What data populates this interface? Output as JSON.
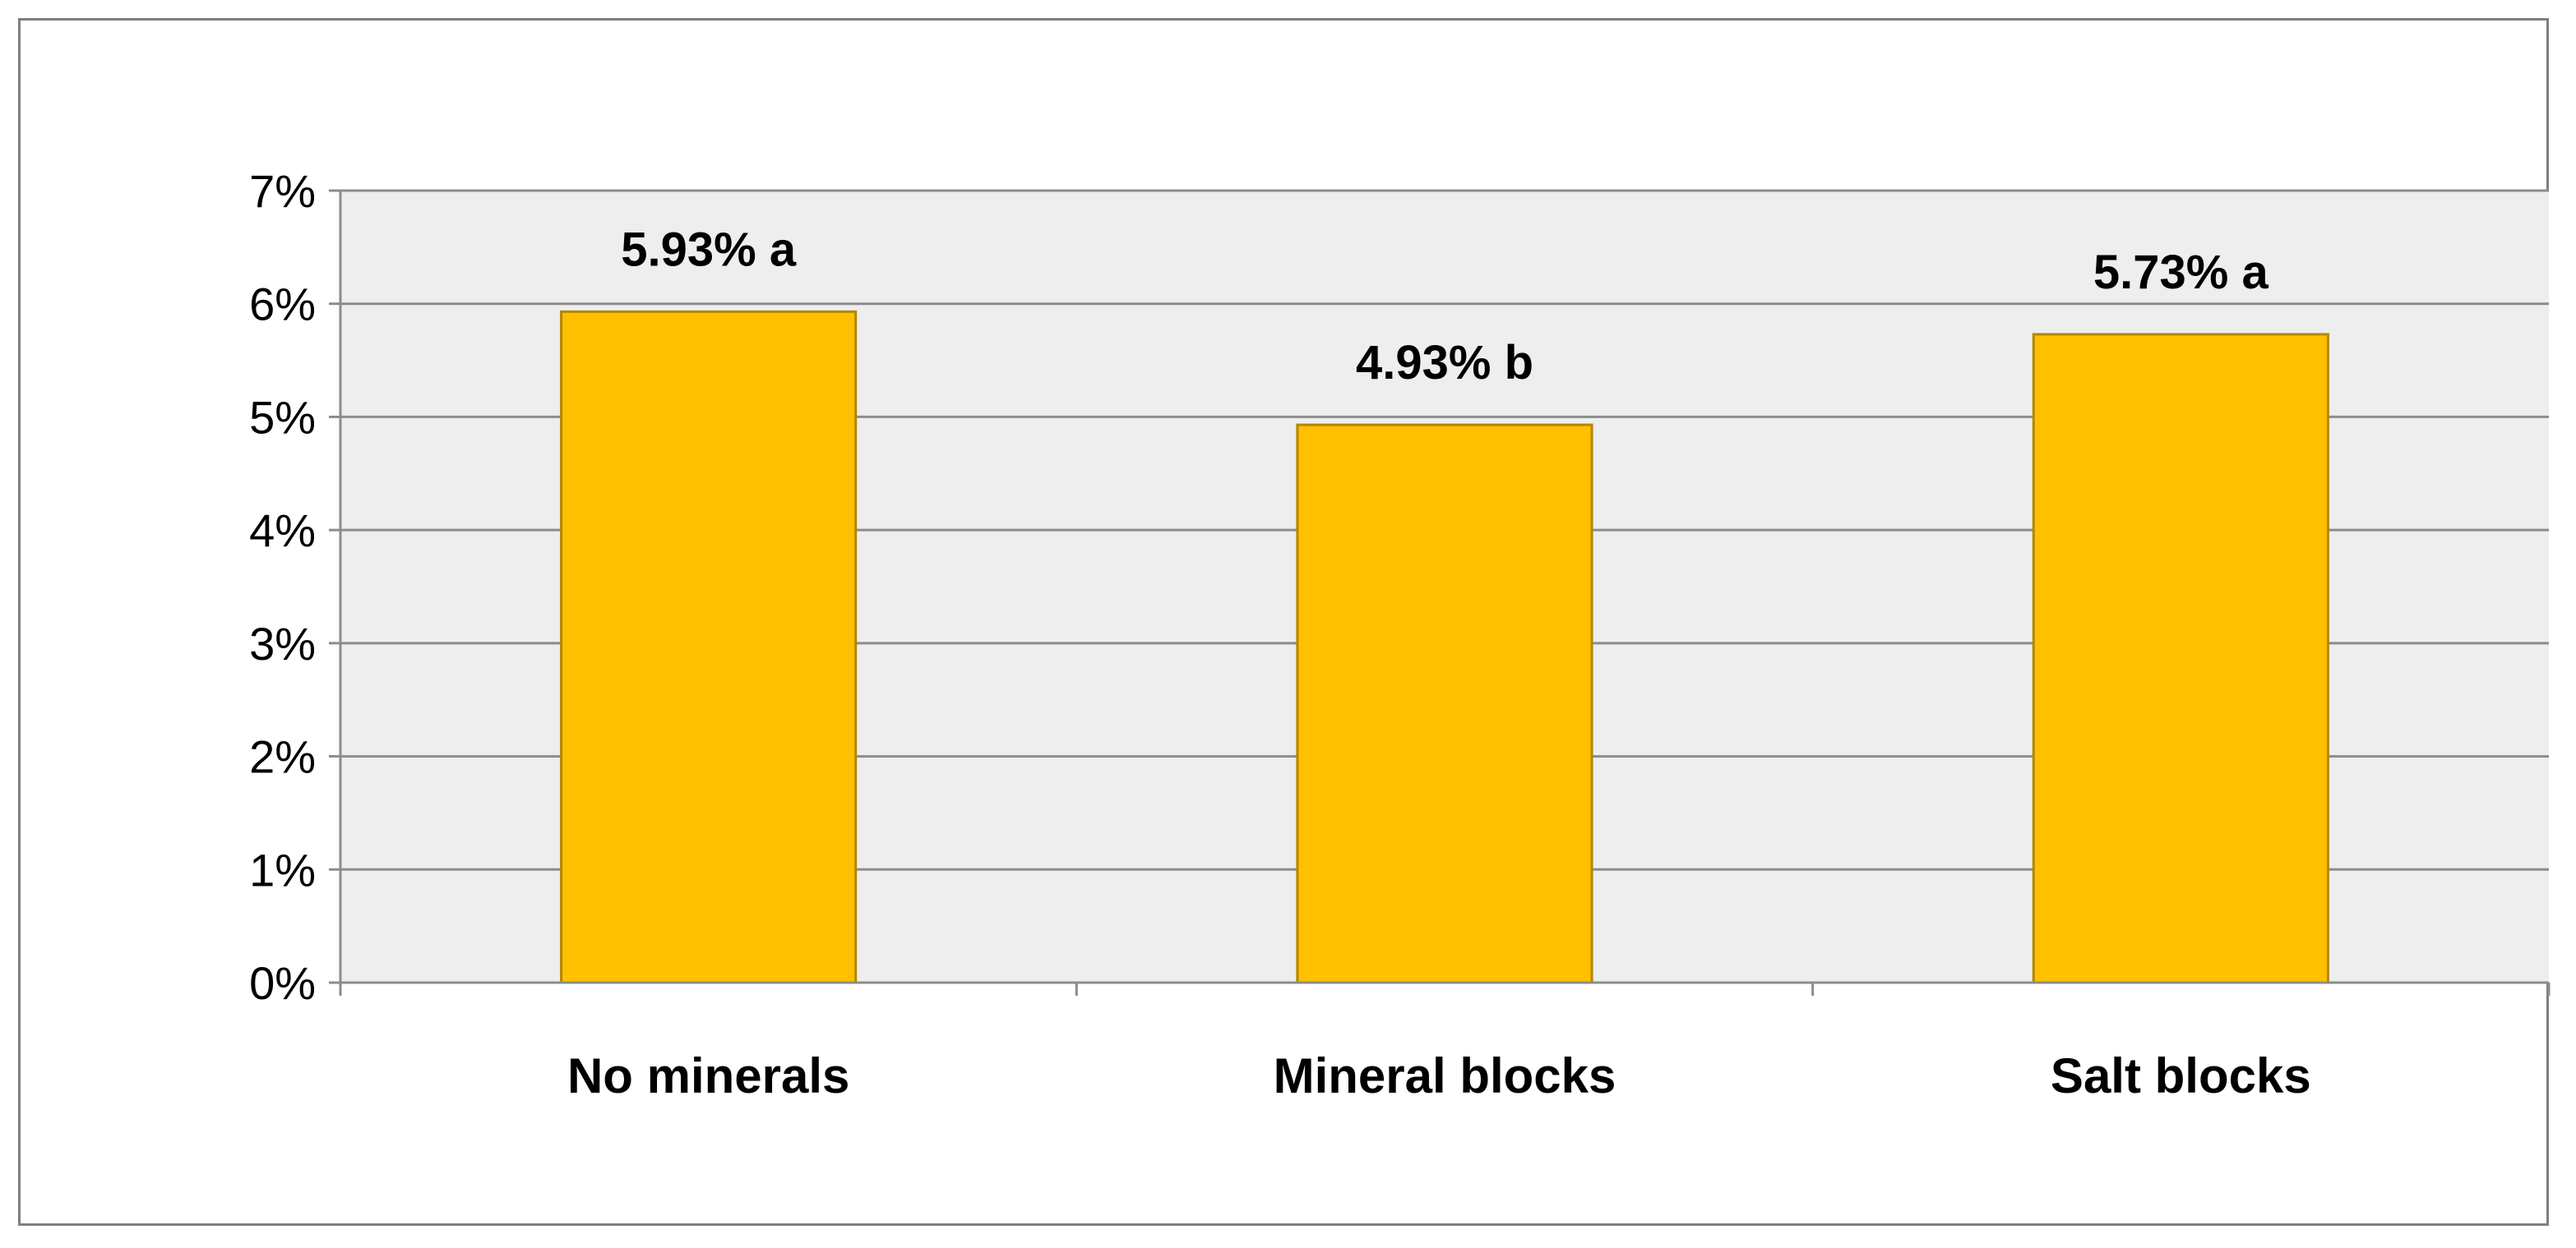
{
  "chart_data": {
    "type": "bar",
    "title": "",
    "xlabel": "",
    "ylabel": "",
    "categories": [
      "No minerals",
      "Mineral blocks",
      "Salt blocks"
    ],
    "values": [
      5.93,
      4.93,
      5.73
    ],
    "data_labels": [
      "5.93% a",
      "4.93% b",
      "5.73% a"
    ],
    "ylim": [
      0,
      7
    ],
    "yticks": [
      0,
      1,
      2,
      3,
      4,
      5,
      6,
      7
    ],
    "ytick_labels": [
      "0%",
      "1%",
      "2%",
      "3%",
      "4%",
      "5%",
      "6%",
      "7%"
    ],
    "grid": true,
    "legend": "none",
    "colors": {
      "bar_fill": "#FFC000",
      "bar_stroke": "#B38600",
      "plot_background": "#EEEEEE",
      "gridline": "#8C8C8C",
      "frame": "#7F7F7F"
    }
  }
}
